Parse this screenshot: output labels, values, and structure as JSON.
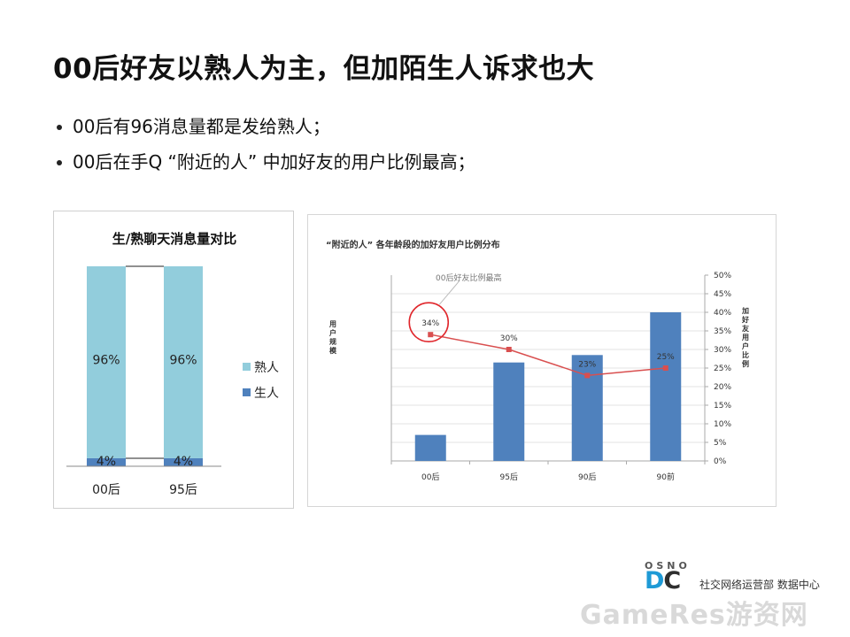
{
  "slide": {
    "title": "00后好友以熟人为主，但加陌生人诉求也大",
    "bullets": [
      "00后有96消息量都是发给熟人；",
      "00后在手Q “附近的人” 中加好友的用户比例最高；"
    ]
  },
  "chart_data": [
    {
      "type": "bar",
      "stacked": true,
      "percent": true,
      "title": "生/熟聊天消息量对比",
      "categories": [
        "00后",
        "95后"
      ],
      "series": [
        {
          "name": "生人",
          "values": [
            4,
            4
          ],
          "labels": [
            "4%",
            "4%"
          ],
          "color": "#4f81bd"
        },
        {
          "name": "熟人",
          "values": [
            96,
            96
          ],
          "labels": [
            "96%",
            "96%"
          ],
          "color": "#92cddc"
        }
      ],
      "legend": "right",
      "ylim": [
        0,
        100
      ],
      "grid": false
    },
    {
      "type": "bar+line",
      "title": "“附近的人” 各年龄段的加好友用户比例分布",
      "categories": [
        "00后",
        "95后",
        "90后",
        "90前"
      ],
      "bar_series": {
        "name": "用户规模",
        "relative_values": [
          0.14,
          0.53,
          0.57,
          0.8
        ],
        "color": "#4f81bd"
      },
      "line_series": {
        "name": "加好友用户比例",
        "values": [
          34,
          30,
          23,
          25
        ],
        "labels": [
          "34%",
          "30%",
          "23%",
          "25%"
        ],
        "color": "#d94f4f"
      },
      "y_left_label": "用户规模",
      "y_right_label": "加好友用户比例",
      "y_right_ticks": [
        "50%",
        "45%",
        "40%",
        "35%",
        "30%",
        "25%",
        "20%",
        "15%",
        "10%",
        "5%",
        "0%"
      ],
      "y_right_lim": [
        0,
        50
      ],
      "annotation": "00后好友比例最高",
      "grid": true
    }
  ],
  "logo": {
    "brand_top": "OSNO",
    "brand_d": "D",
    "brand_c": "C",
    "department": "社交网络运营部 数据中心",
    "watermark": "GameRes游资网"
  }
}
